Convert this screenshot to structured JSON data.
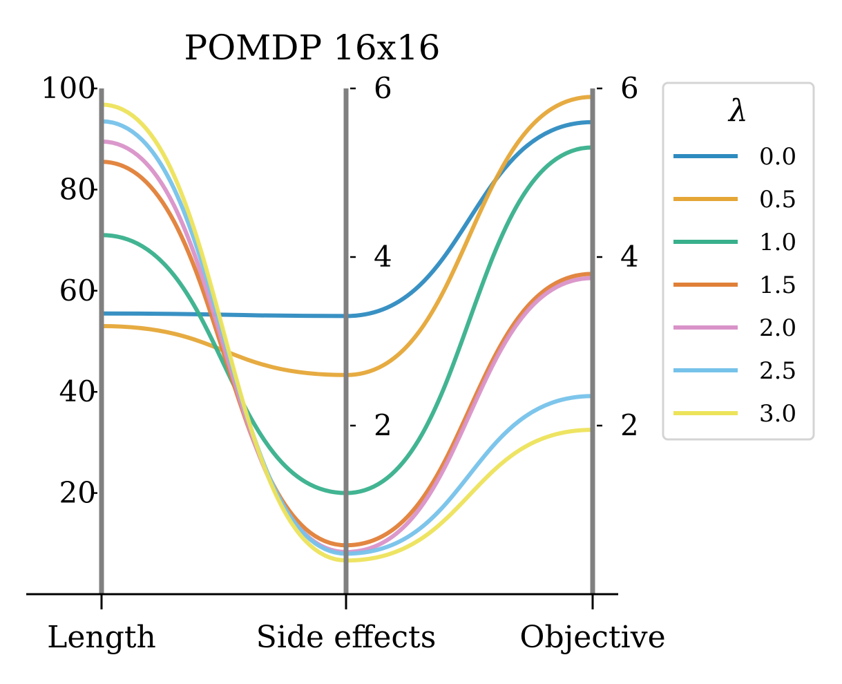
{
  "chart_data": {
    "type": "parallel-coordinates",
    "title": "POMDP 16x16",
    "axes": [
      {
        "name": "Length",
        "ylim": [
          0,
          100
        ],
        "ticks": [
          "20",
          "40",
          "60",
          "80",
          "100"
        ]
      },
      {
        "name": "Side effects",
        "ylim": [
          0,
          6
        ],
        "ticks": [
          "2",
          "4",
          "6"
        ]
      },
      {
        "name": "Objective",
        "ylim": [
          0,
          6
        ],
        "ticks": [
          "2",
          "4",
          "6"
        ]
      }
    ],
    "legend": {
      "title": "λ",
      "placement": "right, outside plot"
    },
    "series": [
      {
        "name": "0.0",
        "color": "#2e8bc0",
        "values": [
          55.5,
          3.3,
          5.6
        ]
      },
      {
        "name": "0.5",
        "color": "#e5a637",
        "values": [
          53,
          2.6,
          5.9
        ]
      },
      {
        "name": "1.0",
        "color": "#38b08c",
        "values": [
          71,
          1.2,
          5.3
        ]
      },
      {
        "name": "1.5",
        "color": "#e08038",
        "values": [
          85.5,
          0.58,
          3.8
        ]
      },
      {
        "name": "2.0",
        "color": "#d992c8",
        "values": [
          89.5,
          0.5,
          3.75
        ]
      },
      {
        "name": "2.5",
        "color": "#76c2ea",
        "values": [
          93.5,
          0.48,
          2.35
        ]
      },
      {
        "name": "3.0",
        "color": "#ede35b",
        "values": [
          96.8,
          0.4,
          1.95
        ]
      }
    ],
    "axis_line_color": "#808080",
    "grid": false
  }
}
